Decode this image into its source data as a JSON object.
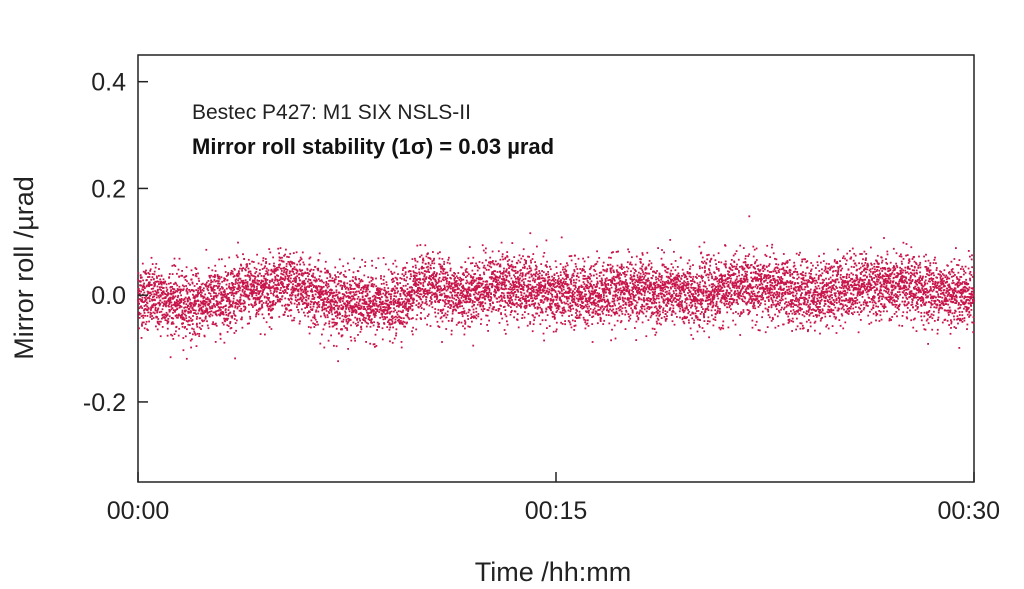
{
  "chart_data": {
    "type": "scatter",
    "title": "",
    "xlabel": "Time /hh:mm",
    "ylabel": "Mirror roll /µrad",
    "x_unit": "minutes",
    "xlim": [
      0,
      30
    ],
    "ylim": [
      -0.35,
      0.45
    ],
    "x_ticks": [
      {
        "value": 0,
        "label": "00:00"
      },
      {
        "value": 15,
        "label": "00:15"
      },
      {
        "value": 30,
        "label": "00:30"
      }
    ],
    "y_ticks": [
      {
        "value": 0.4,
        "label": "0.4"
      },
      {
        "value": 0.2,
        "label": "0.2"
      },
      {
        "value": 0.0,
        "label": "0.0"
      },
      {
        "value": -0.2,
        "label": "-0.2"
      }
    ],
    "grid": false,
    "legend": "none",
    "annotations": [
      "Bestec P427: M1 SIX NSLS-II",
      "Mirror roll stability (1σ) = 0.03 µrad"
    ],
    "marker_color": "#c8154a",
    "series": [
      {
        "points_per_minute": 300,
        "mean_profile": [
          {
            "x": 0,
            "y": 0.0
          },
          {
            "x": 2,
            "y": -0.02
          },
          {
            "x": 4,
            "y": 0.01
          },
          {
            "x": 5.5,
            "y": 0.02
          },
          {
            "x": 7,
            "y": -0.01
          },
          {
            "x": 9,
            "y": -0.02
          },
          {
            "x": 10.5,
            "y": 0.02
          },
          {
            "x": 11.5,
            "y": 0.0
          },
          {
            "x": 13,
            "y": 0.02
          },
          {
            "x": 15,
            "y": 0.0
          },
          {
            "x": 18,
            "y": 0.01
          },
          {
            "x": 20,
            "y": 0.0
          },
          {
            "x": 22,
            "y": 0.02
          },
          {
            "x": 24,
            "y": 0.0
          },
          {
            "x": 26,
            "y": 0.02
          },
          {
            "x": 28,
            "y": 0.01
          },
          {
            "x": 30,
            "y": 0.0
          }
        ],
        "sigma": 0.03
      }
    ]
  }
}
